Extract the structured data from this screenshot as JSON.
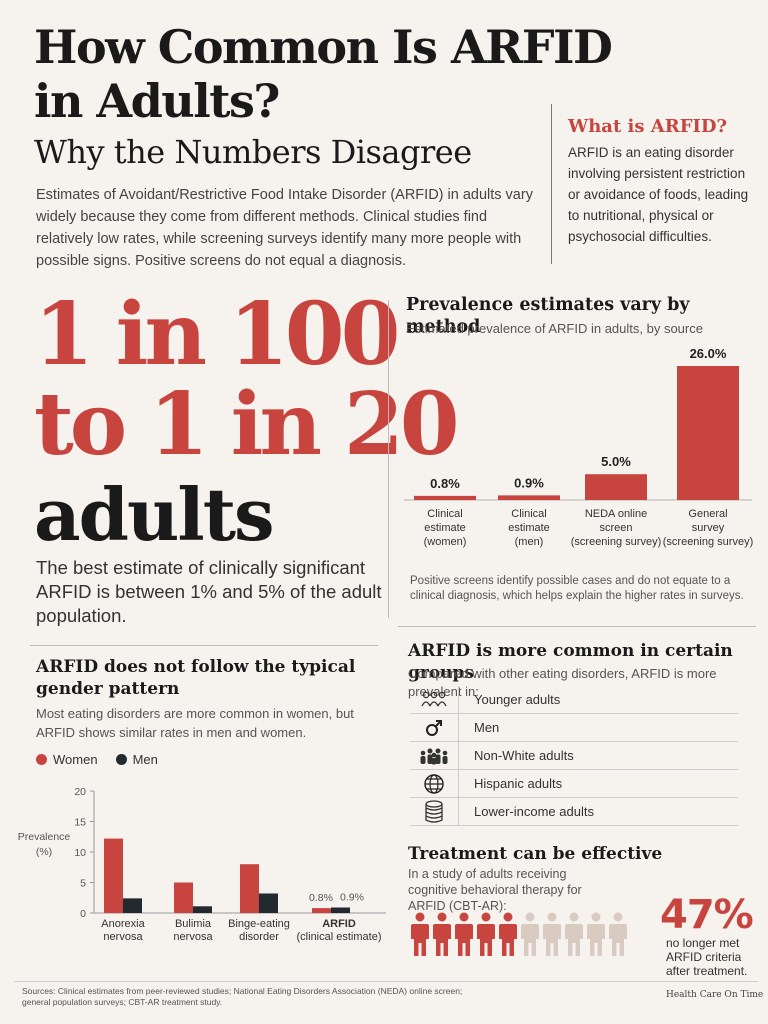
{
  "header": {
    "title_line1": "How Common Is ARFID",
    "title_line2": "in Adults?",
    "subtitle": "Why the Numbers Disagree",
    "intro": "Estimates of Avoidant/Restrictive Food Intake Disorder (ARFID) in adults vary widely because they come from different methods. Clinical studies find relatively low rates, while screening surveys identify many more people with possible signs. Positive screens do not equal a diagnosis."
  },
  "what_is": {
    "heading": "What is ARFID?",
    "text": "ARFID is an eating disorder involving persistent restriction or avoidance of foods, leading to nutritional, physical or psychosocial difficulties."
  },
  "headline": {
    "line1": "1 in 100",
    "line2": "to 1 in 20",
    "line3": "adults",
    "caption": "The best estimate of clinically significant ARFID is between 1% and 5% of the adult population."
  },
  "prevalence_section": {
    "title": "Prevalence estimates vary by method",
    "subtitle": "Estimated prevalence of ARFID in adults, by source",
    "note": "Positive screens identify possible cases and do not equate to a clinical diagnosis, which helps explain the higher rates in surveys."
  },
  "gender_section": {
    "title": "ARFID does not follow the typical gender pattern",
    "subtitle": "Most eating disorders are more common in women, but ARFID shows similar rates in men and women.",
    "legend_women": "Women",
    "legend_men": "Men"
  },
  "groups_section": {
    "title": "ARFID is more common in certain groups",
    "subtitle": "Compared with other eating disorders, ARFID is more prevalent in:",
    "items": [
      {
        "label": "Younger adults",
        "icon": "people-group-icon"
      },
      {
        "label": "Men",
        "icon": "male-symbol-icon"
      },
      {
        "label": "Non-White adults",
        "icon": "crowd-icon"
      },
      {
        "label": "Hispanic adults",
        "icon": "globe-icon"
      },
      {
        "label": "Lower-income adults",
        "icon": "coins-icon"
      }
    ]
  },
  "treatment_section": {
    "title": "Treatment can be effective",
    "subtitle": "In a study of adults receiving cognitive behavioral therapy for ARFID (CBT-AR):",
    "value": "47%",
    "value_text": "no longer met ARFID criteria after treatment.",
    "icons_total": 10,
    "icons_highlighted": 5
  },
  "footer": {
    "sources": "Sources: Clinical estimates from peer-reviewed studies; National Eating Disorders Association (NEDA) online screen; general population surveys; CBT-AR treatment study.",
    "brand": "Health Care On Time"
  },
  "colors": {
    "accent": "#c8453f",
    "dark": "#222a30",
    "person_light": "#d9cbc2"
  },
  "chart_data": [
    {
      "type": "bar",
      "title": "Prevalence estimates vary by method",
      "subtitle": "Estimated prevalence of ARFID in adults, by source",
      "categories": [
        [
          "Clinical",
          "estimate",
          "(women)"
        ],
        [
          "Clinical",
          "estimate",
          "(men)"
        ],
        [
          "NEDA online",
          "screen",
          "(screening survey)"
        ],
        [
          "General",
          "survey",
          "(screening survey)"
        ]
      ],
      "values": [
        0.8,
        0.9,
        5.0,
        26.0
      ],
      "value_labels": [
        "0.8%",
        "0.9%",
        "5.0%",
        "26.0%"
      ],
      "ylim": [
        0,
        26
      ],
      "grid": false
    },
    {
      "type": "bar",
      "title": "ARFID does not follow the typical gender pattern",
      "categories": [
        [
          "Anorexia",
          "nervosa"
        ],
        [
          "Bulimia",
          "nervosa"
        ],
        [
          "Binge-eating",
          "disorder"
        ],
        [
          "ARFID",
          "(clinical estimate)"
        ]
      ],
      "series": [
        {
          "name": "Women",
          "values": [
            12.2,
            5.0,
            8.0,
            0.8
          ]
        },
        {
          "name": "Men",
          "values": [
            2.4,
            1.1,
            3.2,
            0.9
          ]
        }
      ],
      "value_labels": {
        "3": [
          "0.8%",
          "0.9%"
        ]
      },
      "ylabel": [
        "Prevalence",
        "(%)"
      ],
      "yticks": [
        0,
        5,
        10,
        15,
        20
      ],
      "ylim": [
        0,
        20
      ],
      "legend": "top-left",
      "grid": false
    }
  ]
}
